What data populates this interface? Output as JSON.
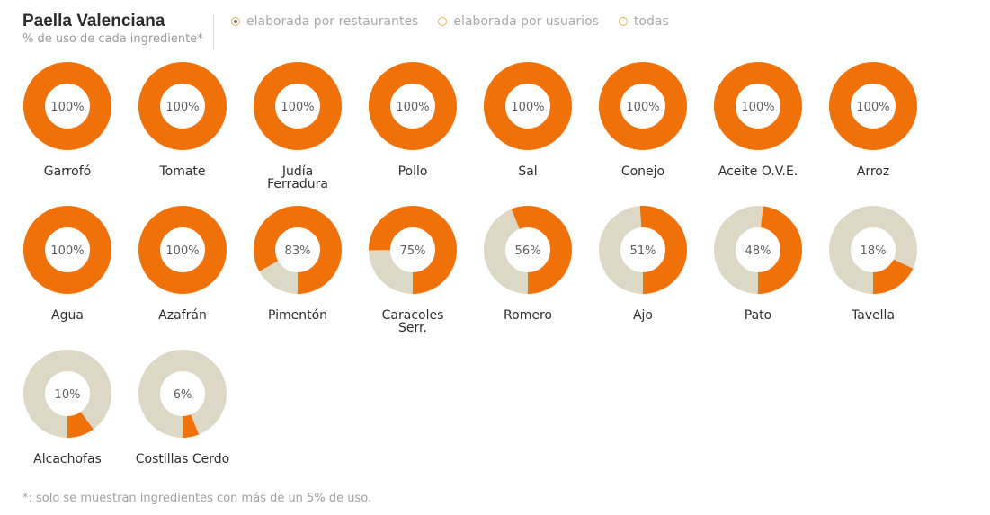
{
  "header": {
    "title": "Paella Valenciana",
    "subtitle": "% de uso de cada ingrediente*"
  },
  "filters": [
    {
      "label": "elaborada por restaurantes",
      "selected": true
    },
    {
      "label": "elaborada por usuarios",
      "selected": false
    },
    {
      "label": "todas",
      "selected": false
    }
  ],
  "footnote": "*: solo se muestran ingredientes con más de un 5% de uso.",
  "chart_data": {
    "type": "donut-grid",
    "colors": {
      "used": "#f07108",
      "remaining": "#ddd8c6"
    },
    "items": [
      {
        "name": "Garrofó",
        "lines": [
          "Garrofó"
        ],
        "value": 100,
        "label": "100%"
      },
      {
        "name": "Tomate",
        "lines": [
          "Tomate"
        ],
        "value": 100,
        "label": "100%"
      },
      {
        "name": "Judía Ferradura",
        "lines": [
          "Judía",
          "Ferradura"
        ],
        "value": 100,
        "label": "100%"
      },
      {
        "name": "Pollo",
        "lines": [
          "Pollo"
        ],
        "value": 100,
        "label": "100%"
      },
      {
        "name": "Sal",
        "lines": [
          "Sal"
        ],
        "value": 100,
        "label": "100%"
      },
      {
        "name": "Conejo",
        "lines": [
          "Conejo"
        ],
        "value": 100,
        "label": "100%"
      },
      {
        "name": "Aceite O.V.E.",
        "lines": [
          "Aceite O.V.E."
        ],
        "value": 100,
        "label": "100%"
      },
      {
        "name": "Arroz",
        "lines": [
          "Arroz"
        ],
        "value": 100,
        "label": "100%"
      },
      {
        "name": "Agua",
        "lines": [
          "Agua"
        ],
        "value": 100,
        "label": "100%"
      },
      {
        "name": "Azafrán",
        "lines": [
          "Azafrán"
        ],
        "value": 100,
        "label": "100%"
      },
      {
        "name": "Pimentón",
        "lines": [
          "Pimentón"
        ],
        "value": 83,
        "label": "83%"
      },
      {
        "name": "Caracoles Serr.",
        "lines": [
          "Caracoles",
          "Serr."
        ],
        "value": 75,
        "label": "75%"
      },
      {
        "name": "Romero",
        "lines": [
          "Romero"
        ],
        "value": 56,
        "label": "56%"
      },
      {
        "name": "Ajo",
        "lines": [
          "Ajo"
        ],
        "value": 51,
        "label": "51%"
      },
      {
        "name": "Pato",
        "lines": [
          "Pato"
        ],
        "value": 48,
        "label": "48%"
      },
      {
        "name": "Tavella",
        "lines": [
          "Tavella"
        ],
        "value": 18,
        "label": "18%"
      },
      {
        "name": "Alcachofas",
        "lines": [
          "Alcachofas"
        ],
        "value": 10,
        "label": "10%"
      },
      {
        "name": "Costillas Cerdo",
        "lines": [
          "Costillas Cerdo"
        ],
        "value": 6,
        "label": "6%"
      }
    ]
  }
}
